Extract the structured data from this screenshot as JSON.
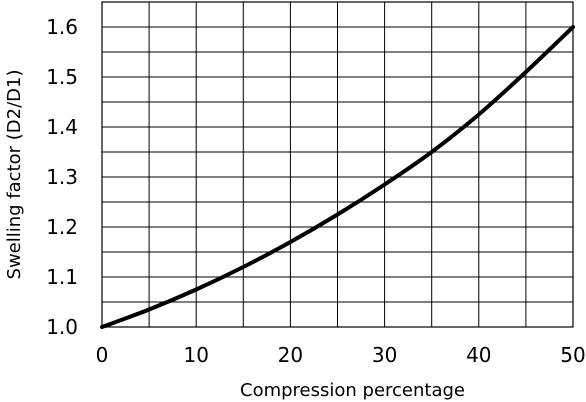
{
  "chart_data": {
    "type": "line",
    "title": "",
    "xlabel": "Compression percentage",
    "ylabel": "Swelling factor (D2/D1)",
    "xlim": [
      0,
      50
    ],
    "ylim": [
      1.0,
      1.6
    ],
    "grid": true,
    "x_ticks": [
      "0",
      "10",
      "20",
      "30",
      "40",
      "50"
    ],
    "y_ticks": [
      "1.0",
      "1.1",
      "1.2",
      "1.3",
      "1.4",
      "1.5",
      "1.6"
    ],
    "series": [
      {
        "x": [
          0,
          5,
          10,
          15,
          20,
          25,
          30,
          35,
          40,
          45,
          50
        ],
        "y": [
          1.0,
          1.035,
          1.075,
          1.12,
          1.17,
          1.225,
          1.285,
          1.35,
          1.425,
          1.51,
          1.6
        ]
      }
    ],
    "colors": {
      "line": "#000000",
      "grid": "#000000",
      "background": "#ffffff"
    }
  }
}
